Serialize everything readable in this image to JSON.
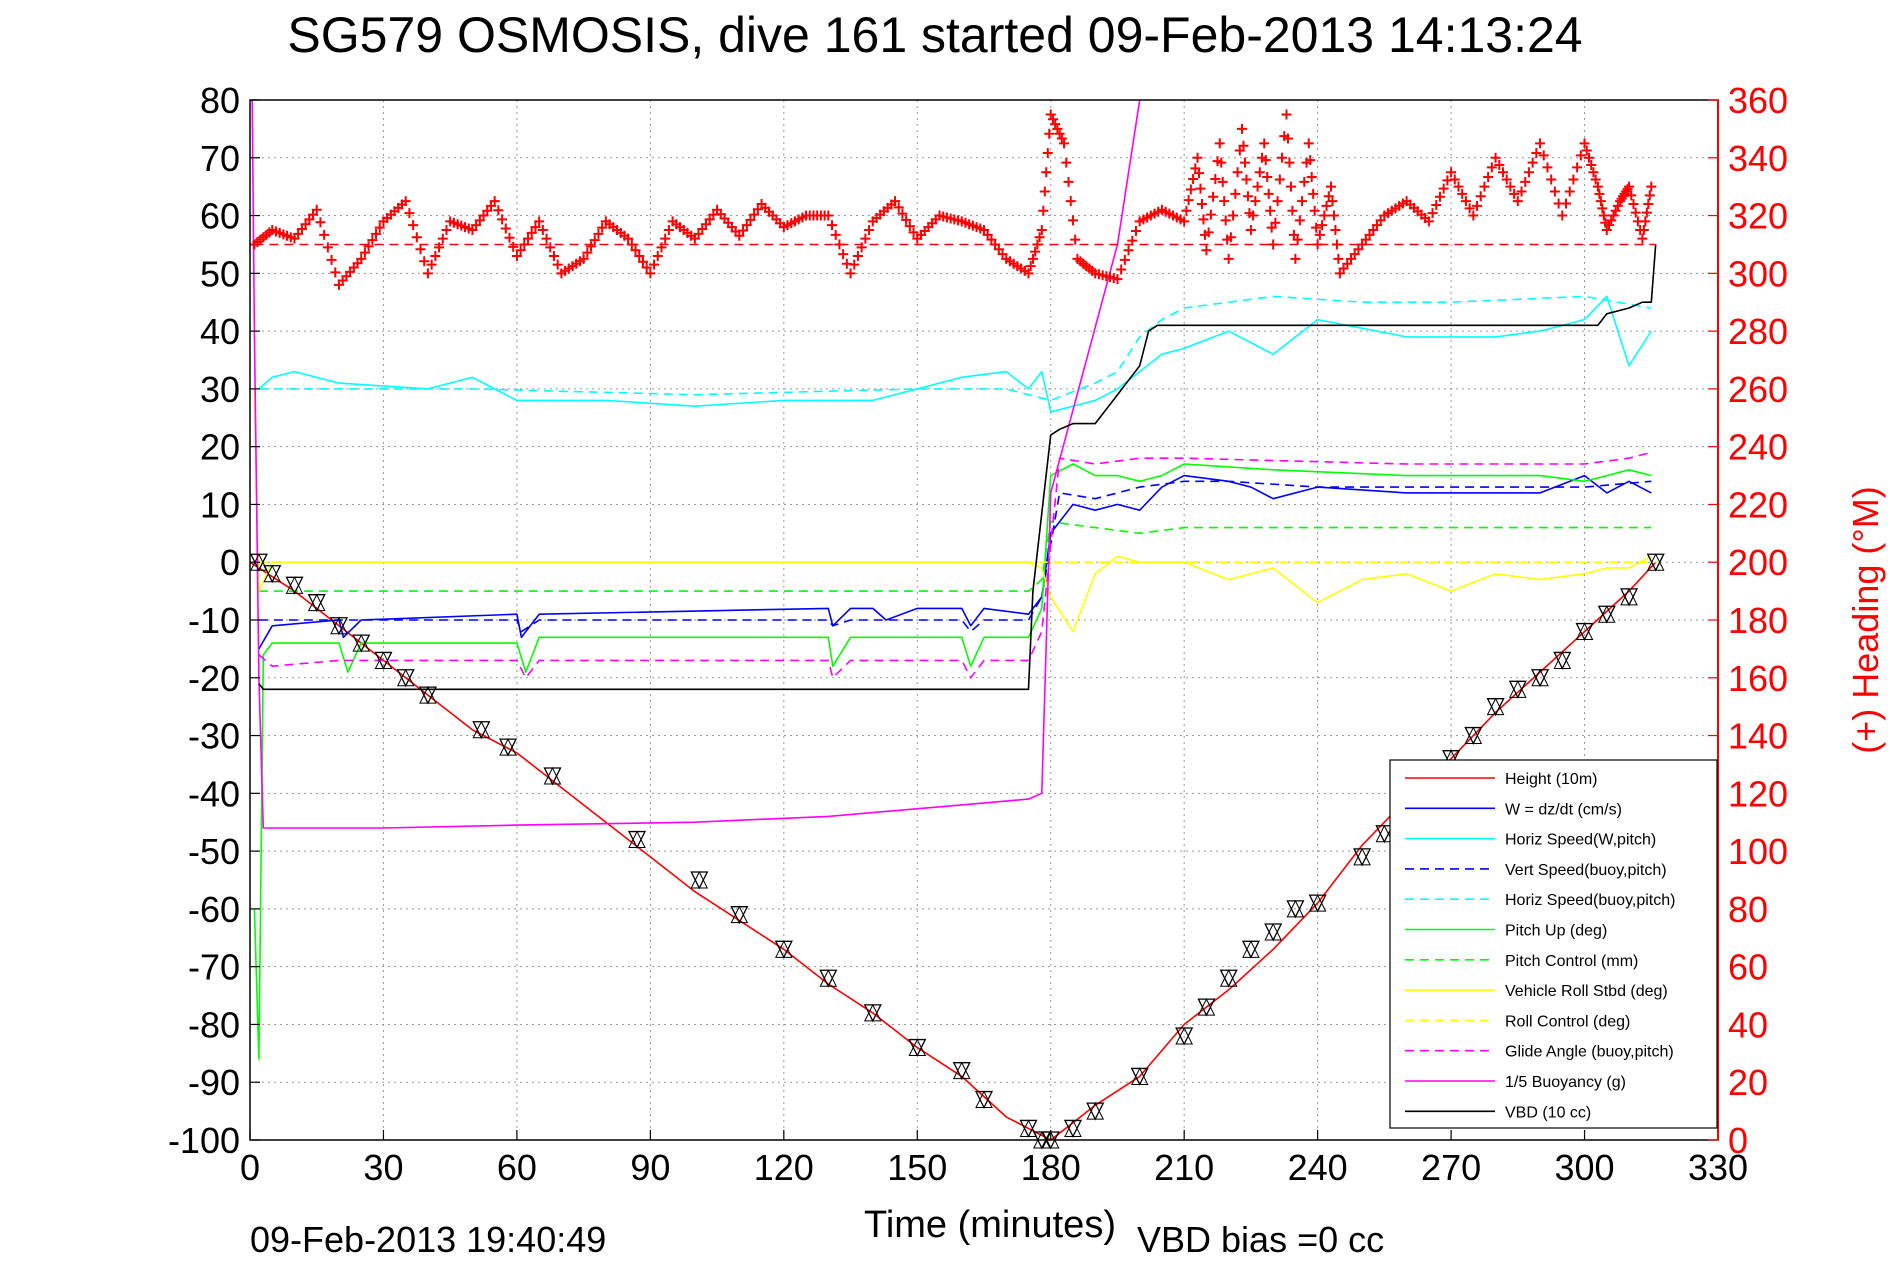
{
  "chart_data": {
    "type": "line",
    "title": "SG579 OSMOSIS, dive 161 started 09-Feb-2013 14:13:24",
    "xlabel": "Time (minutes)",
    "ylabel_right": "(+) Heading (°M)",
    "footer_left": "09-Feb-2013 19:40:49",
    "footer_right": "VBD bias =0 cc",
    "xlim": [
      0,
      330
    ],
    "ylim": [
      -100,
      80
    ],
    "ylim_right": [
      0,
      360
    ],
    "xticks": [
      "0",
      "30",
      "60",
      "90",
      "120",
      "150",
      "180",
      "210",
      "240",
      "270",
      "300",
      "330"
    ],
    "yticks": [
      "80",
      "70",
      "60",
      "50",
      "40",
      "30",
      "20",
      "10",
      "0",
      "-10",
      "-20",
      "-30",
      "-40",
      "-50",
      "-60",
      "-70",
      "-80",
      "-90",
      "-100"
    ],
    "yticks_right": [
      "360",
      "340",
      "320",
      "300",
      "280",
      "260",
      "240",
      "220",
      "200",
      "180",
      "160",
      "140",
      "120",
      "100",
      "80",
      "60",
      "40",
      "20",
      "0"
    ],
    "grid": true,
    "legend_position": "bottom-right",
    "colors": {
      "height": "#ff0000",
      "w": "#0000ff",
      "horiz_w": "#00ffff",
      "pitch": "#00ff00",
      "roll": "#ffff00",
      "glide": "#ff00ff",
      "vbd": "#000000",
      "heading": "#ff0000"
    },
    "series": [
      {
        "name": "Height (10m)",
        "color": "#ff0000",
        "style": "solid",
        "x": [
          0,
          10,
          20,
          30,
          40,
          50,
          60,
          70,
          80,
          90,
          100,
          110,
          120,
          130,
          140,
          150,
          160,
          170,
          175,
          180,
          185,
          190,
          200,
          210,
          220,
          230,
          240,
          250,
          260,
          270,
          280,
          290,
          300,
          310,
          316
        ],
        "y": [
          0,
          -5,
          -11,
          -17,
          -23,
          -29,
          -33,
          -39,
          -45,
          -51,
          -57,
          -62,
          -67,
          -73,
          -78,
          -84,
          -89,
          -96,
          -98,
          -100,
          -97,
          -94,
          -89,
          -80,
          -74,
          -67,
          -59,
          -49,
          -41,
          -34,
          -26,
          -19,
          -12,
          -5,
          0
        ]
      },
      {
        "name": "W = dz/dt (cm/s)",
        "color": "#0000ff",
        "style": "solid",
        "x": [
          2,
          5,
          20,
          21,
          25,
          60,
          61,
          65,
          130,
          131,
          135,
          140,
          143,
          150,
          160,
          162,
          165,
          175,
          178,
          180,
          185,
          190,
          195,
          200,
          205,
          210,
          220,
          225,
          230,
          240,
          260,
          290,
          300,
          305,
          310,
          315
        ],
        "y": [
          -15,
          -11,
          -10,
          -13,
          -10,
          -9,
          -13,
          -9,
          -8,
          -11,
          -8,
          -8,
          -10,
          -8,
          -8,
          -11,
          -8,
          -9,
          -6,
          5,
          10,
          9,
          10,
          9,
          13,
          15,
          14,
          13,
          11,
          13,
          12,
          12,
          15,
          12,
          14,
          12
        ]
      },
      {
        "name": "Horiz Speed(W,pitch)",
        "color": "#00ffff",
        "style": "solid",
        "x": [
          2,
          5,
          10,
          20,
          40,
          50,
          60,
          80,
          100,
          120,
          140,
          150,
          160,
          170,
          175,
          178,
          180,
          185,
          190,
          195,
          200,
          205,
          210,
          220,
          230,
          240,
          260,
          280,
          290,
          300,
          305,
          310,
          315
        ],
        "y": [
          30,
          32,
          33,
          31,
          30,
          32,
          28,
          28,
          27,
          28,
          28,
          30,
          32,
          33,
          30,
          33,
          26,
          27,
          28,
          30,
          33,
          36,
          37,
          40,
          36,
          42,
          39,
          39,
          40,
          42,
          46,
          34,
          40
        ]
      },
      {
        "name": "Vert Speed(buoy,pitch)",
        "color": "#0000ff",
        "style": "dashed",
        "x": [
          2,
          10,
          60,
          61,
          65,
          130,
          131,
          135,
          160,
          162,
          165,
          175,
          178,
          182,
          190,
          200,
          210,
          220,
          240,
          260,
          300,
          315
        ],
        "y": [
          -10,
          -10,
          -10,
          -12,
          -10,
          -10,
          -11,
          -10,
          -10,
          -12,
          -10,
          -10,
          -6,
          12,
          11,
          13,
          14,
          14,
          13,
          13,
          13,
          14
        ]
      },
      {
        "name": "Horiz Speed(buoy,pitch)",
        "color": "#00ffff",
        "style": "dashed",
        "x": [
          2,
          10,
          50,
          100,
          150,
          170,
          175,
          180,
          190,
          195,
          200,
          205,
          210,
          230,
          250,
          270,
          300,
          315
        ],
        "y": [
          30,
          30,
          30,
          29,
          30,
          30,
          29,
          28,
          31,
          33,
          39,
          42,
          44,
          46,
          45,
          45,
          46,
          44
        ]
      },
      {
        "name": "Pitch Up (deg)",
        "color": "#00ff00",
        "style": "solid",
        "x": [
          1,
          2,
          3,
          5,
          20,
          22,
          25,
          60,
          62,
          65,
          130,
          131,
          135,
          160,
          162,
          165,
          175,
          178,
          180,
          185,
          190,
          195,
          200,
          205,
          210,
          230,
          260,
          290,
          300,
          305,
          310,
          315
        ],
        "y": [
          -60,
          -86,
          -16,
          -14,
          -14,
          -19,
          -14,
          -14,
          -19,
          -13,
          -13,
          -18,
          -13,
          -13,
          -18,
          -13,
          -13,
          -8,
          15,
          17,
          15,
          15,
          14,
          15,
          17,
          16,
          15,
          15,
          14,
          15,
          16,
          15
        ]
      },
      {
        "name": "Pitch Control (mm)",
        "color": "#00ff00",
        "style": "dashed",
        "x": [
          2,
          5,
          30,
          80,
          130,
          175,
          178,
          180,
          190,
          200,
          210,
          260,
          310,
          315
        ],
        "y": [
          -5,
          -5,
          -5,
          -5,
          -5,
          -5,
          -3,
          7,
          6,
          5,
          6,
          6,
          6,
          6
        ]
      },
      {
        "name": "Vehicle Roll Stbd (deg)",
        "color": "#ffff00",
        "style": "solid",
        "x": [
          1,
          2,
          5,
          10,
          15,
          20,
          40,
          50,
          60,
          70,
          80,
          100,
          120,
          140,
          150,
          160,
          170,
          175,
          178,
          180,
          185,
          190,
          195,
          200,
          210,
          220,
          230,
          240,
          250,
          260,
          270,
          280,
          290,
          300,
          305,
          310,
          315
        ],
        "y": [
          30,
          -5,
          0,
          0,
          0,
          0,
          0,
          0,
          0,
          0,
          0,
          0,
          0,
          0,
          0,
          0,
          0,
          0,
          -1,
          -6,
          -12,
          -2,
          1,
          0,
          0,
          -3,
          -1,
          -7,
          -3,
          -2,
          -5,
          -2,
          -3,
          -2,
          -1,
          -1,
          1
        ]
      },
      {
        "name": "Roll Control (deg)",
        "color": "#ffff00",
        "style": "dashed",
        "x": [
          2,
          30,
          90,
          150,
          180,
          185,
          230,
          280,
          316
        ],
        "y": [
          0,
          0,
          0,
          0,
          0,
          0,
          0,
          0,
          0
        ]
      },
      {
        "name": "Glide Angle (buoy,pitch)",
        "color": "#ff00ff",
        "style": "dashed",
        "x": [
          2,
          5,
          20,
          60,
          62,
          65,
          130,
          131,
          135,
          160,
          162,
          165,
          175,
          178,
          182,
          190,
          200,
          210,
          260,
          300,
          310,
          315
        ],
        "y": [
          -16,
          -18,
          -17,
          -17,
          -20,
          -17,
          -17,
          -20,
          -17,
          -17,
          -20,
          -17,
          -17,
          -12,
          18,
          17,
          18,
          18,
          17,
          17,
          18,
          19
        ]
      },
      {
        "name": "1/5 Buoyancy (g)",
        "color": "#ff00ff",
        "style": "solid",
        "x": [
          0.5,
          1,
          2,
          3,
          30,
          60,
          100,
          130,
          160,
          175,
          178,
          180,
          195,
          200
        ],
        "y": [
          80,
          40,
          -20,
          -46,
          -46,
          -45.5,
          -45,
          -44,
          -42,
          -41,
          -40,
          12,
          55,
          80
        ]
      },
      {
        "name": "VBD (10 cc)",
        "color": "#000000",
        "style": "solid",
        "x": [
          2,
          3,
          100,
          175,
          176,
          180,
          182,
          185,
          190,
          195,
          200,
          202,
          204,
          230,
          250,
          270,
          290,
          300,
          303,
          305,
          310,
          313,
          315,
          316
        ],
        "y": [
          -21,
          -22,
          -22,
          -22,
          -5,
          22,
          23,
          24,
          24,
          29,
          34,
          40,
          41,
          41,
          41,
          41,
          41,
          41,
          41,
          43,
          44,
          45,
          45,
          55
        ]
      }
    ],
    "heading_series": {
      "name": "Heading",
      "axis": "right",
      "marker": "+",
      "color": "#ff0000",
      "target": 310,
      "x": [
        1,
        5,
        10,
        15,
        20,
        25,
        30,
        35,
        40,
        45,
        50,
        55,
        60,
        65,
        70,
        75,
        80,
        85,
        90,
        95,
        100,
        105,
        110,
        115,
        120,
        125,
        130,
        135,
        140,
        145,
        150,
        155,
        160,
        165,
        170,
        175,
        178,
        180,
        183,
        186,
        190,
        195,
        200,
        205,
        210,
        213,
        215,
        218,
        220,
        223,
        225,
        228,
        230,
        233,
        235,
        238,
        240,
        243,
        245,
        250,
        255,
        260,
        265,
        270,
        275,
        280,
        285,
        290,
        295,
        300,
        303,
        305,
        308,
        310,
        313,
        315
      ],
      "y": [
        310,
        315,
        312,
        322,
        296,
        305,
        318,
        325,
        300,
        318,
        315,
        325,
        306,
        318,
        300,
        305,
        318,
        312,
        300,
        318,
        312,
        322,
        313,
        324,
        316,
        320,
        320,
        300,
        318,
        325,
        312,
        320,
        318,
        315,
        305,
        300,
        315,
        355,
        345,
        305,
        300,
        298,
        318,
        322,
        318,
        340,
        308,
        345,
        305,
        350,
        315,
        345,
        310,
        355,
        305,
        345,
        310,
        330,
        300,
        310,
        320,
        325,
        318,
        335,
        320,
        340,
        325,
        345,
        320,
        345,
        330,
        315,
        325,
        330,
        312,
        330
      ]
    },
    "triangle_markers": {
      "color": "#000000",
      "x": [
        2,
        5,
        10,
        15,
        20,
        25,
        30,
        35,
        40,
        52,
        58,
        68,
        87,
        101,
        110,
        120,
        130,
        140,
        150,
        160,
        165,
        175,
        178,
        180,
        185,
        190,
        200,
        210,
        215,
        220,
        225,
        230,
        235,
        240,
        250,
        255,
        260,
        265,
        270,
        275,
        280,
        285,
        290,
        295,
        300,
        305,
        310,
        316
      ],
      "y": [
        0,
        -2,
        -4,
        -7,
        -11,
        -14,
        -17,
        -20,
        -23,
        -29,
        -32,
        -37,
        -48,
        -55,
        -61,
        -67,
        -72,
        -78,
        -84,
        -88,
        -93,
        -98,
        -100,
        -100,
        -98,
        -95,
        -89,
        -82,
        -77,
        -72,
        -67,
        -64,
        -60,
        -59,
        -51,
        -47,
        -43,
        -38,
        -34,
        -30,
        -25,
        -22,
        -20,
        -17,
        -12,
        -9,
        -6,
        0
      ]
    }
  }
}
